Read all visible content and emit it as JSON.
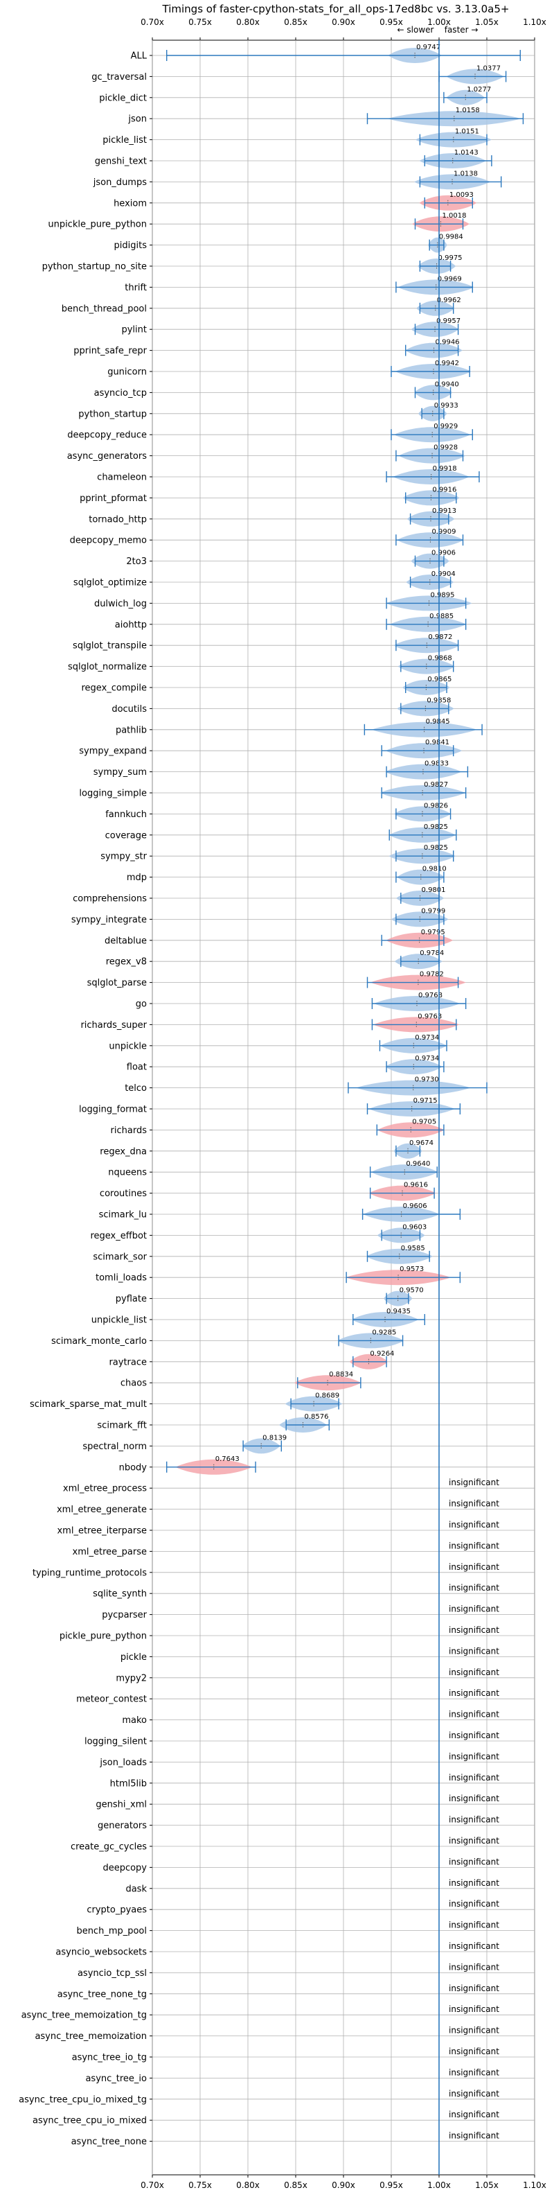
{
  "chart_data": {
    "type": "violin",
    "title": "Timings of faster-cpython-stats_for_all_ops-17ed8bc vs. 3.13.0a5+",
    "direction_label": "← slower    faster →",
    "xlim": [
      0.7,
      1.1
    ],
    "xticks": [
      "0.70x",
      "0.75x",
      "0.80x",
      "0.85x",
      "0.90x",
      "0.95x",
      "1.00x",
      "1.05x",
      "1.10x"
    ],
    "xtick_values": [
      0.7,
      0.75,
      0.8,
      0.85,
      0.9,
      0.95,
      1.0,
      1.05,
      1.1
    ],
    "reference_line": 1.0,
    "colors": {
      "faster": "#a9c8e8",
      "slower": "#f4a6ab",
      "line": "#2b78be",
      "grid": "#b0b0b0"
    },
    "insignificant_label": "insignificant",
    "benchmarks": [
      {
        "name": "ALL",
        "label": "0.9747",
        "center": 0.9747,
        "min": 0.715,
        "max": 1.085,
        "width": 0.028,
        "slower": false
      },
      {
        "name": "gc_traversal",
        "label": "1.0377",
        "center": 1.0377,
        "min": 1.0,
        "max": 1.07,
        "width": 0.03,
        "slower": false
      },
      {
        "name": "pickle_dict",
        "label": "1.0277",
        "center": 1.0277,
        "min": 1.005,
        "max": 1.05,
        "width": 0.02,
        "slower": false
      },
      {
        "name": "json",
        "label": "1.0158",
        "center": 1.0158,
        "min": 0.925,
        "max": 1.088,
        "width": 0.07,
        "slower": false
      },
      {
        "name": "pickle_list",
        "label": "1.0151",
        "center": 1.0151,
        "min": 0.98,
        "max": 1.05,
        "width": 0.04,
        "slower": false
      },
      {
        "name": "genshi_text",
        "label": "1.0143",
        "center": 1.0143,
        "min": 0.985,
        "max": 1.055,
        "width": 0.035,
        "slower": false
      },
      {
        "name": "json_dumps",
        "label": "1.0138",
        "center": 1.0138,
        "min": 0.98,
        "max": 1.065,
        "width": 0.04,
        "slower": false
      },
      {
        "name": "hexiom",
        "label": "1.0093",
        "center": 1.0093,
        "min": 0.985,
        "max": 1.035,
        "width": 0.03,
        "slower": true
      },
      {
        "name": "unpickle_pure_python",
        "label": "1.0018",
        "center": 1.0018,
        "min": 0.975,
        "max": 1.025,
        "width": 0.03,
        "slower": true
      },
      {
        "name": "pidigits",
        "label": "0.9984",
        "center": 0.9984,
        "min": 0.99,
        "max": 1.005,
        "width": 0.01,
        "slower": false
      },
      {
        "name": "python_startup_no_site",
        "label": "0.9975",
        "center": 0.9975,
        "min": 0.98,
        "max": 1.012,
        "width": 0.02,
        "slower": false
      },
      {
        "name": "thrift",
        "label": "0.9969",
        "center": 0.9969,
        "min": 0.955,
        "max": 1.035,
        "width": 0.04,
        "slower": false
      },
      {
        "name": "bench_thread_pool",
        "label": "0.9962",
        "center": 0.9962,
        "min": 0.98,
        "max": 1.015,
        "width": 0.02,
        "slower": false
      },
      {
        "name": "pylint",
        "label": "0.9957",
        "center": 0.9957,
        "min": 0.975,
        "max": 1.02,
        "width": 0.025,
        "slower": false
      },
      {
        "name": "pprint_safe_repr",
        "label": "0.9946",
        "center": 0.9946,
        "min": 0.965,
        "max": 1.02,
        "width": 0.03,
        "slower": false
      },
      {
        "name": "gunicorn",
        "label": "0.9942",
        "center": 0.9942,
        "min": 0.95,
        "max": 1.032,
        "width": 0.04,
        "slower": false
      },
      {
        "name": "asyncio_tcp",
        "label": "0.9940",
        "center": 0.994,
        "min": 0.975,
        "max": 1.012,
        "width": 0.02,
        "slower": false
      },
      {
        "name": "python_startup",
        "label": "0.9933",
        "center": 0.9933,
        "min": 0.982,
        "max": 1.005,
        "width": 0.015,
        "slower": false
      },
      {
        "name": "deepcopy_reduce",
        "label": "0.9929",
        "center": 0.9929,
        "min": 0.95,
        "max": 1.035,
        "width": 0.04,
        "slower": false
      },
      {
        "name": "async_generators",
        "label": "0.9928",
        "center": 0.9928,
        "min": 0.955,
        "max": 1.025,
        "width": 0.035,
        "slower": false
      },
      {
        "name": "chameleon",
        "label": "0.9918",
        "center": 0.9918,
        "min": 0.945,
        "max": 1.042,
        "width": 0.04,
        "slower": false
      },
      {
        "name": "pprint_pformat",
        "label": "0.9916",
        "center": 0.9916,
        "min": 0.965,
        "max": 1.018,
        "width": 0.03,
        "slower": false
      },
      {
        "name": "tornado_http",
        "label": "0.9913",
        "center": 0.9913,
        "min": 0.97,
        "max": 1.01,
        "width": 0.025,
        "slower": false
      },
      {
        "name": "deepcopy_memo",
        "label": "0.9909",
        "center": 0.9909,
        "min": 0.955,
        "max": 1.025,
        "width": 0.035,
        "slower": false
      },
      {
        "name": "2to3",
        "label": "0.9906",
        "center": 0.9906,
        "min": 0.975,
        "max": 1.005,
        "width": 0.02,
        "slower": false
      },
      {
        "name": "sqlglot_optimize",
        "label": "0.9904",
        "center": 0.9904,
        "min": 0.97,
        "max": 1.012,
        "width": 0.025,
        "slower": false
      },
      {
        "name": "dulwich_log",
        "label": "0.9895",
        "center": 0.9895,
        "min": 0.945,
        "max": 1.028,
        "width": 0.045,
        "slower": false
      },
      {
        "name": "aiohttp",
        "label": "0.9885",
        "center": 0.9885,
        "min": 0.945,
        "max": 1.028,
        "width": 0.04,
        "slower": false
      },
      {
        "name": "sqlglot_transpile",
        "label": "0.9872",
        "center": 0.9872,
        "min": 0.955,
        "max": 1.02,
        "width": 0.035,
        "slower": false
      },
      {
        "name": "sqlglot_normalize",
        "label": "0.9868",
        "center": 0.9868,
        "min": 0.96,
        "max": 1.015,
        "width": 0.03,
        "slower": false
      },
      {
        "name": "regex_compile",
        "label": "0.9865",
        "center": 0.9865,
        "min": 0.965,
        "max": 1.008,
        "width": 0.025,
        "slower": false
      },
      {
        "name": "docutils",
        "label": "0.9858",
        "center": 0.9858,
        "min": 0.96,
        "max": 1.01,
        "width": 0.03,
        "slower": false
      },
      {
        "name": "pathlib",
        "label": "0.9845",
        "center": 0.9845,
        "min": 0.922,
        "max": 1.045,
        "width": 0.055,
        "slower": false
      },
      {
        "name": "sympy_expand",
        "label": "0.9841",
        "center": 0.9841,
        "min": 0.94,
        "max": 1.015,
        "width": 0.04,
        "slower": false
      },
      {
        "name": "sympy_sum",
        "label": "0.9833",
        "center": 0.9833,
        "min": 0.945,
        "max": 1.03,
        "width": 0.04,
        "slower": false
      },
      {
        "name": "logging_simple",
        "label": "0.9827",
        "center": 0.9827,
        "min": 0.94,
        "max": 1.028,
        "width": 0.045,
        "slower": false
      },
      {
        "name": "fannkuch",
        "label": "0.9826",
        "center": 0.9826,
        "min": 0.955,
        "max": 1.012,
        "width": 0.03,
        "slower": false
      },
      {
        "name": "coverage",
        "label": "0.9825",
        "center": 0.9825,
        "min": 0.948,
        "max": 1.018,
        "width": 0.035,
        "slower": false
      },
      {
        "name": "sympy_str",
        "label": "0.9825",
        "center": 0.9825,
        "min": 0.955,
        "max": 1.015,
        "width": 0.035,
        "slower": false
      },
      {
        "name": "mdp",
        "label": "0.9810",
        "center": 0.981,
        "min": 0.955,
        "max": 1.005,
        "width": 0.025,
        "slower": false
      },
      {
        "name": "comprehensions",
        "label": "0.9801",
        "center": 0.9801,
        "min": 0.96,
        "max": 1.0,
        "width": 0.025,
        "slower": false
      },
      {
        "name": "sympy_integrate",
        "label": "0.9799",
        "center": 0.9799,
        "min": 0.955,
        "max": 1.005,
        "width": 0.03,
        "slower": false
      },
      {
        "name": "deltablue",
        "label": "0.9795",
        "center": 0.9795,
        "min": 0.94,
        "max": 1.005,
        "width": 0.035,
        "slower": true
      },
      {
        "name": "regex_v8",
        "label": "0.9784",
        "center": 0.9784,
        "min": 0.96,
        "max": 1.0,
        "width": 0.025,
        "slower": false
      },
      {
        "name": "sqlglot_parse",
        "label": "0.9782",
        "center": 0.9782,
        "min": 0.925,
        "max": 1.02,
        "width": 0.05,
        "slower": true
      },
      {
        "name": "go",
        "label": "0.9768",
        "center": 0.9768,
        "min": 0.93,
        "max": 1.028,
        "width": 0.045,
        "slower": false
      },
      {
        "name": "richards_super",
        "label": "0.9763",
        "center": 0.9763,
        "min": 0.93,
        "max": 1.018,
        "width": 0.045,
        "slower": true
      },
      {
        "name": "unpickle",
        "label": "0.9734",
        "center": 0.9734,
        "min": 0.938,
        "max": 1.008,
        "width": 0.035,
        "slower": false
      },
      {
        "name": "float",
        "label": "0.9734",
        "center": 0.9734,
        "min": 0.945,
        "max": 1.005,
        "width": 0.03,
        "slower": false
      },
      {
        "name": "telco",
        "label": "0.9730",
        "center": 0.973,
        "min": 0.905,
        "max": 1.05,
        "width": 0.06,
        "slower": false
      },
      {
        "name": "logging_format",
        "label": "0.9715",
        "center": 0.9715,
        "min": 0.925,
        "max": 1.022,
        "width": 0.045,
        "slower": false
      },
      {
        "name": "richards",
        "label": "0.9705",
        "center": 0.9705,
        "min": 0.935,
        "max": 1.005,
        "width": 0.035,
        "slower": true
      },
      {
        "name": "regex_dna",
        "label": "0.9674",
        "center": 0.9674,
        "min": 0.955,
        "max": 0.98,
        "width": 0.015,
        "slower": false
      },
      {
        "name": "nqueens",
        "label": "0.9640",
        "center": 0.964,
        "min": 0.928,
        "max": 0.998,
        "width": 0.035,
        "slower": false
      },
      {
        "name": "coroutines",
        "label": "0.9616",
        "center": 0.9616,
        "min": 0.928,
        "max": 0.995,
        "width": 0.035,
        "slower": true
      },
      {
        "name": "scimark_lu",
        "label": "0.9606",
        "center": 0.9606,
        "min": 0.92,
        "max": 1.022,
        "width": 0.04,
        "slower": false
      },
      {
        "name": "regex_effbot",
        "label": "0.9603",
        "center": 0.9603,
        "min": 0.94,
        "max": 0.98,
        "width": 0.025,
        "slower": false
      },
      {
        "name": "scimark_sor",
        "label": "0.9585",
        "center": 0.9585,
        "min": 0.925,
        "max": 0.99,
        "width": 0.035,
        "slower": false
      },
      {
        "name": "tomli_loads",
        "label": "0.9573",
        "center": 0.9573,
        "min": 0.903,
        "max": 1.022,
        "width": 0.055,
        "slower": true
      },
      {
        "name": "pyflate",
        "label": "0.9570",
        "center": 0.957,
        "min": 0.945,
        "max": 0.968,
        "width": 0.015,
        "slower": false
      },
      {
        "name": "unpickle_list",
        "label": "0.9435",
        "center": 0.9435,
        "min": 0.91,
        "max": 0.985,
        "width": 0.035,
        "slower": false
      },
      {
        "name": "scimark_monte_carlo",
        "label": "0.9285",
        "center": 0.9285,
        "min": 0.895,
        "max": 0.962,
        "width": 0.035,
        "slower": false
      },
      {
        "name": "raytrace",
        "label": "0.9264",
        "center": 0.9264,
        "min": 0.91,
        "max": 0.945,
        "width": 0.02,
        "slower": true
      },
      {
        "name": "chaos",
        "label": "0.8834",
        "center": 0.8834,
        "min": 0.852,
        "max": 0.918,
        "width": 0.035,
        "slower": true
      },
      {
        "name": "scimark_sparse_mat_mult",
        "label": "0.8689",
        "center": 0.8689,
        "min": 0.845,
        "max": 0.895,
        "width": 0.03,
        "slower": false
      },
      {
        "name": "scimark_fft",
        "label": "0.8576",
        "center": 0.8576,
        "min": 0.84,
        "max": 0.885,
        "width": 0.025,
        "slower": false
      },
      {
        "name": "spectral_norm",
        "label": "0.8139",
        "center": 0.8139,
        "min": 0.795,
        "max": 0.835,
        "width": 0.02,
        "slower": false
      },
      {
        "name": "nbody",
        "label": "0.7643",
        "center": 0.7643,
        "min": 0.715,
        "max": 0.808,
        "width": 0.04,
        "slower": true
      }
    ],
    "insignificant": [
      "xml_etree_process",
      "xml_etree_generate",
      "xml_etree_iterparse",
      "xml_etree_parse",
      "typing_runtime_protocols",
      "sqlite_synth",
      "pycparser",
      "pickle_pure_python",
      "pickle",
      "mypy2",
      "meteor_contest",
      "mako",
      "logging_silent",
      "json_loads",
      "html5lib",
      "genshi_xml",
      "generators",
      "create_gc_cycles",
      "deepcopy",
      "dask",
      "crypto_pyaes",
      "bench_mp_pool",
      "asyncio_websockets",
      "asyncio_tcp_ssl",
      "async_tree_none_tg",
      "async_tree_memoization_tg",
      "async_tree_memoization",
      "async_tree_io_tg",
      "async_tree_io",
      "async_tree_cpu_io_mixed_tg",
      "async_tree_cpu_io_mixed",
      "async_tree_none"
    ]
  }
}
